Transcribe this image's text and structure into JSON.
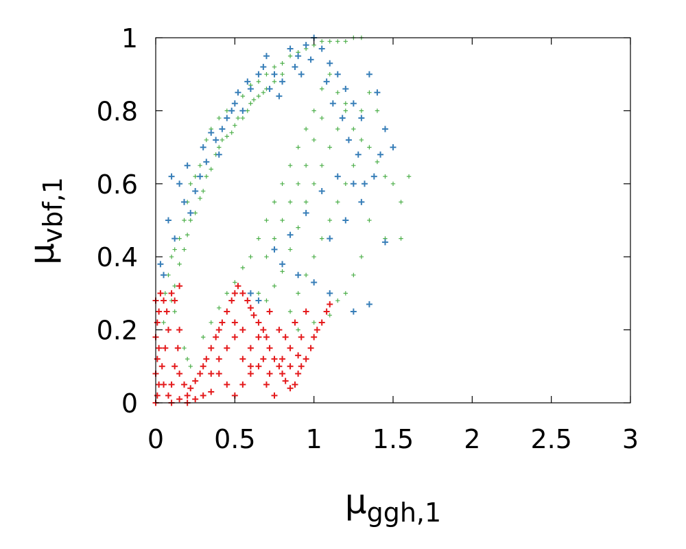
{
  "chart_data": {
    "type": "scatter",
    "title": "",
    "xlabel": {
      "symbol": "μ",
      "subscript": "ggh,1"
    },
    "ylabel": {
      "symbol": "μ",
      "subscript": "vbf,1"
    },
    "xlim": [
      0,
      3
    ],
    "ylim": [
      0,
      1
    ],
    "xticks": [
      "0",
      "0.5",
      "1",
      "1.5",
      "2",
      "2.5",
      "3"
    ],
    "xtick_values": [
      0,
      0.5,
      1,
      1.5,
      2,
      2.5,
      3
    ],
    "yticks": [
      "0",
      "0.2",
      "0.4",
      "0.6",
      "0.8",
      "1"
    ],
    "ytick_values": [
      0,
      0.2,
      0.4,
      0.6,
      0.8,
      1
    ],
    "grid": false,
    "legend": "none",
    "marker": "plus",
    "series": [
      {
        "color": "#4daf4a",
        "marker_size": "small",
        "points": [
          [
            0.05,
            0.22
          ],
          [
            0.06,
            0.3
          ],
          [
            0.08,
            0.35
          ],
          [
            0.1,
            0.4
          ],
          [
            0.12,
            0.42
          ],
          [
            0.15,
            0.45
          ],
          [
            0.18,
            0.5
          ],
          [
            0.2,
            0.55
          ],
          [
            0.22,
            0.6
          ],
          [
            0.25,
            0.62
          ],
          [
            0.28,
            0.65
          ],
          [
            0.3,
            0.7
          ],
          [
            0.32,
            0.72
          ],
          [
            0.35,
            0.75
          ],
          [
            0.4,
            0.78
          ],
          [
            0.45,
            0.8
          ],
          [
            0.5,
            0.82
          ],
          [
            0.55,
            0.84
          ],
          [
            0.6,
            0.87
          ],
          [
            0.65,
            0.88
          ],
          [
            0.7,
            0.9
          ],
          [
            0.75,
            0.92
          ],
          [
            0.8,
            0.93
          ],
          [
            0.85,
            0.95
          ],
          [
            0.9,
            0.96
          ],
          [
            0.95,
            0.97
          ],
          [
            1.0,
            0.98
          ],
          [
            1.05,
            0.99
          ],
          [
            1.1,
            0.99
          ],
          [
            1.15,
            0.99
          ],
          [
            1.2,
            0.99
          ],
          [
            1.25,
            1.0
          ],
          [
            1.3,
            1.0
          ],
          [
            0.12,
            0.32
          ],
          [
            0.15,
            0.38
          ],
          [
            0.2,
            0.46
          ],
          [
            0.25,
            0.52
          ],
          [
            0.3,
            0.58
          ],
          [
            0.35,
            0.64
          ],
          [
            0.4,
            0.7
          ],
          [
            0.45,
            0.73
          ],
          [
            0.5,
            0.76
          ],
          [
            0.55,
            0.78
          ],
          [
            0.6,
            0.82
          ],
          [
            0.65,
            0.84
          ],
          [
            0.7,
            0.86
          ],
          [
            0.75,
            0.88
          ],
          [
            0.8,
            0.9
          ],
          [
            0.18,
            0.42
          ],
          [
            0.22,
            0.5
          ],
          [
            0.28,
            0.56
          ],
          [
            0.32,
            0.62
          ],
          [
            0.38,
            0.68
          ],
          [
            0.42,
            0.72
          ],
          [
            0.48,
            0.74
          ],
          [
            0.52,
            0.78
          ],
          [
            0.58,
            0.8
          ],
          [
            0.62,
            0.83
          ],
          [
            0.68,
            0.85
          ],
          [
            0.1,
            0.28
          ],
          [
            0.12,
            0.25
          ],
          [
            0.15,
            0.2
          ],
          [
            0.18,
            0.15
          ],
          [
            0.2,
            0.12
          ],
          [
            0.22,
            0.1
          ],
          [
            0.15,
            0.08
          ],
          [
            0.3,
            0.18
          ],
          [
            0.35,
            0.22
          ],
          [
            0.4,
            0.26
          ],
          [
            0.45,
            0.3
          ],
          [
            0.5,
            0.33
          ],
          [
            0.55,
            0.37
          ],
          [
            0.6,
            0.4
          ],
          [
            0.65,
            0.45
          ],
          [
            0.7,
            0.5
          ],
          [
            0.75,
            0.55
          ],
          [
            0.8,
            0.6
          ],
          [
            0.85,
            0.65
          ],
          [
            0.9,
            0.7
          ],
          [
            0.95,
            0.75
          ],
          [
            1.0,
            0.8
          ],
          [
            1.05,
            0.86
          ],
          [
            1.1,
            0.9
          ],
          [
            1.15,
            0.85
          ],
          [
            1.2,
            0.8
          ],
          [
            1.25,
            0.75
          ],
          [
            1.3,
            0.72
          ],
          [
            1.35,
            0.7
          ],
          [
            1.4,
            0.66
          ],
          [
            1.45,
            0.62
          ],
          [
            1.5,
            0.6
          ],
          [
            1.55,
            0.55
          ],
          [
            1.6,
            0.62
          ],
          [
            1.45,
            0.45
          ],
          [
            1.55,
            0.45
          ],
          [
            1.35,
            0.5
          ],
          [
            1.3,
            0.4
          ],
          [
            1.25,
            0.35
          ],
          [
            1.2,
            0.3
          ],
          [
            1.15,
            0.28
          ],
          [
            1.1,
            0.24
          ],
          [
            1.0,
            0.22
          ],
          [
            0.9,
            0.2
          ],
          [
            0.85,
            0.25
          ],
          [
            0.9,
            0.3
          ],
          [
            0.95,
            0.35
          ],
          [
            1.0,
            0.4
          ],
          [
            1.05,
            0.45
          ],
          [
            1.1,
            0.5
          ],
          [
            1.15,
            0.55
          ],
          [
            1.2,
            0.6
          ],
          [
            1.25,
            0.65
          ],
          [
            1.3,
            0.8
          ],
          [
            1.35,
            0.85
          ],
          [
            1.4,
            0.8
          ],
          [
            1.45,
            0.75
          ],
          [
            1.5,
            0.7
          ],
          [
            0.75,
            0.32
          ],
          [
            0.8,
            0.36
          ],
          [
            0.7,
            0.28
          ],
          [
            0.65,
            0.3
          ],
          [
            0.85,
            0.42
          ],
          [
            0.9,
            0.48
          ],
          [
            0.95,
            0.55
          ],
          [
            1.0,
            0.6
          ],
          [
            1.05,
            0.65
          ],
          [
            1.1,
            0.7
          ],
          [
            1.15,
            0.75
          ],
          [
            1.2,
            0.82
          ],
          [
            0.7,
            0.4
          ],
          [
            0.75,
            0.45
          ],
          [
            0.8,
            0.5
          ],
          [
            0.85,
            0.55
          ],
          [
            0.9,
            0.6
          ],
          [
            0.95,
            0.65
          ],
          [
            1.0,
            0.72
          ],
          [
            1.05,
            0.78
          ]
        ]
      },
      {
        "color": "#377eb8",
        "marker_size": "large",
        "points": [
          [
            0.03,
            0.38
          ],
          [
            0.05,
            0.35
          ],
          [
            0.1,
            0.62
          ],
          [
            0.15,
            0.6
          ],
          [
            0.2,
            0.65
          ],
          [
            0.25,
            0.58
          ],
          [
            0.3,
            0.7
          ],
          [
            0.35,
            0.74
          ],
          [
            0.4,
            0.68
          ],
          [
            0.45,
            0.78
          ],
          [
            0.5,
            0.82
          ],
          [
            0.55,
            0.8
          ],
          [
            0.6,
            0.86
          ],
          [
            0.65,
            0.9
          ],
          [
            0.7,
            0.95
          ],
          [
            0.75,
            0.9
          ],
          [
            0.8,
            0.88
          ],
          [
            0.85,
            0.97
          ],
          [
            0.9,
            0.95
          ],
          [
            0.95,
            0.98
          ],
          [
            1.0,
            1.0
          ],
          [
            1.05,
            0.97
          ],
          [
            1.1,
            0.93
          ],
          [
            1.15,
            0.9
          ],
          [
            1.2,
            0.86
          ],
          [
            1.25,
            0.82
          ],
          [
            1.3,
            0.78
          ],
          [
            1.35,
            0.9
          ],
          [
            1.4,
            0.85
          ],
          [
            1.45,
            0.75
          ],
          [
            1.5,
            0.7
          ],
          [
            1.45,
            0.44
          ],
          [
            1.35,
            0.27
          ],
          [
            1.25,
            0.25
          ],
          [
            1.1,
            0.3
          ],
          [
            1.0,
            0.33
          ],
          [
            0.9,
            0.35
          ],
          [
            0.8,
            0.38
          ],
          [
            0.75,
            0.42
          ],
          [
            0.85,
            0.46
          ],
          [
            0.95,
            0.52
          ],
          [
            1.05,
            0.58
          ],
          [
            1.15,
            0.62
          ],
          [
            1.25,
            0.6
          ],
          [
            1.3,
            0.55
          ],
          [
            1.2,
            0.5
          ],
          [
            1.1,
            0.45
          ],
          [
            0.6,
            0.3
          ],
          [
            0.65,
            0.28
          ],
          [
            0.08,
            0.5
          ],
          [
            0.12,
            0.45
          ],
          [
            0.18,
            0.55
          ],
          [
            0.22,
            0.52
          ],
          [
            0.28,
            0.62
          ],
          [
            0.32,
            0.66
          ],
          [
            0.38,
            0.72
          ],
          [
            0.42,
            0.75
          ],
          [
            0.48,
            0.8
          ],
          [
            0.52,
            0.85
          ],
          [
            0.58,
            0.88
          ],
          [
            0.68,
            0.92
          ],
          [
            0.72,
            0.86
          ],
          [
            0.78,
            0.84
          ],
          [
            0.88,
            0.92
          ],
          [
            0.92,
            0.9
          ],
          [
            0.98,
            0.94
          ],
          [
            1.08,
            0.88
          ],
          [
            1.12,
            0.82
          ],
          [
            1.18,
            0.78
          ],
          [
            1.22,
            0.72
          ],
          [
            1.28,
            0.68
          ],
          [
            1.32,
            0.6
          ],
          [
            1.38,
            0.62
          ],
          [
            1.42,
            0.68
          ]
        ]
      },
      {
        "color": "#e41a1c",
        "marker_size": "large",
        "points": [
          [
            0.0,
            0.0
          ],
          [
            0.01,
            0.02
          ],
          [
            0.02,
            0.05
          ],
          [
            0.0,
            0.08
          ],
          [
            0.01,
            0.12
          ],
          [
            0.02,
            0.15
          ],
          [
            0.0,
            0.18
          ],
          [
            0.01,
            0.22
          ],
          [
            0.02,
            0.25
          ],
          [
            0.0,
            0.28
          ],
          [
            0.03,
            0.3
          ],
          [
            0.05,
            0.28
          ],
          [
            0.07,
            0.25
          ],
          [
            0.1,
            0.3
          ],
          [
            0.12,
            0.28
          ],
          [
            0.15,
            0.32
          ],
          [
            0.08,
            0.2
          ],
          [
            0.06,
            0.15
          ],
          [
            0.04,
            0.1
          ],
          [
            0.05,
            0.05
          ],
          [
            0.08,
            0.02
          ],
          [
            0.1,
            0.05
          ],
          [
            0.12,
            0.1
          ],
          [
            0.14,
            0.15
          ],
          [
            0.15,
            0.2
          ],
          [
            0.15,
            0.08
          ],
          [
            0.18,
            0.05
          ],
          [
            0.2,
            0.02
          ],
          [
            0.22,
            0.04
          ],
          [
            0.25,
            0.06
          ],
          [
            0.28,
            0.08
          ],
          [
            0.3,
            0.1
          ],
          [
            0.32,
            0.12
          ],
          [
            0.35,
            0.15
          ],
          [
            0.38,
            0.18
          ],
          [
            0.4,
            0.2
          ],
          [
            0.42,
            0.22
          ],
          [
            0.45,
            0.25
          ],
          [
            0.48,
            0.28
          ],
          [
            0.5,
            0.3
          ],
          [
            0.52,
            0.32
          ],
          [
            0.55,
            0.3
          ],
          [
            0.58,
            0.28
          ],
          [
            0.6,
            0.26
          ],
          [
            0.62,
            0.24
          ],
          [
            0.65,
            0.22
          ],
          [
            0.68,
            0.2
          ],
          [
            0.7,
            0.18
          ],
          [
            0.72,
            0.15
          ],
          [
            0.75,
            0.12
          ],
          [
            0.78,
            0.1
          ],
          [
            0.8,
            0.08
          ],
          [
            0.82,
            0.06
          ],
          [
            0.85,
            0.04
          ],
          [
            0.88,
            0.05
          ],
          [
            0.9,
            0.08
          ],
          [
            0.92,
            0.1
          ],
          [
            0.95,
            0.12
          ],
          [
            0.98,
            0.15
          ],
          [
            1.0,
            0.18
          ],
          [
            1.02,
            0.2
          ],
          [
            1.05,
            0.22
          ],
          [
            1.08,
            0.25
          ],
          [
            1.1,
            0.27
          ],
          [
            0.55,
            0.05
          ],
          [
            0.6,
            0.08
          ],
          [
            0.65,
            0.1
          ],
          [
            0.7,
            0.05
          ],
          [
            0.75,
            0.02
          ],
          [
            0.5,
            0.02
          ],
          [
            0.45,
            0.05
          ],
          [
            0.4,
            0.08
          ],
          [
            0.35,
            0.03
          ],
          [
            0.3,
            0.02
          ],
          [
            0.25,
            0.01
          ],
          [
            0.2,
            0.0
          ],
          [
            0.15,
            0.01
          ],
          [
            0.1,
            0.0
          ],
          [
            0.6,
            0.15
          ],
          [
            0.65,
            0.18
          ],
          [
            0.55,
            0.2
          ],
          [
            0.5,
            0.18
          ],
          [
            0.45,
            0.15
          ],
          [
            0.4,
            0.12
          ],
          [
            0.35,
            0.08
          ],
          [
            0.72,
            0.25
          ],
          [
            0.78,
            0.2
          ],
          [
            0.82,
            0.18
          ],
          [
            0.85,
            0.15
          ],
          [
            0.88,
            0.22
          ],
          [
            0.92,
            0.18
          ],
          [
            0.95,
            0.25
          ],
          [
            0.6,
            0.1
          ],
          [
            0.68,
            0.12
          ],
          [
            0.72,
            0.08
          ],
          [
            0.8,
            0.12
          ],
          [
            0.85,
            0.1
          ],
          [
            0.9,
            0.13
          ],
          [
            0.5,
            0.22
          ],
          [
            0.55,
            0.12
          ]
        ]
      }
    ]
  }
}
